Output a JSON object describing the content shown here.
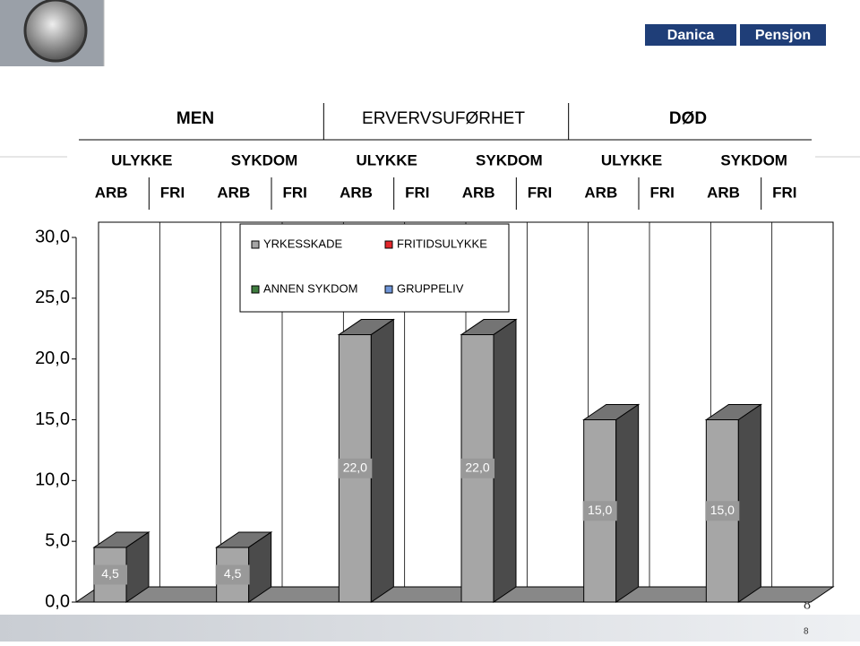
{
  "logo": {
    "left": "Danica",
    "right": "Pensjon"
  },
  "page_number": "8",
  "chart_data": {
    "type": "bar3d",
    "groups": [
      "MEN",
      "ERVERVSUFØRHET",
      "DØD"
    ],
    "subgroups": [
      "ULYKKE",
      "SYKDOM",
      "ULYKKE",
      "SYKDOM",
      "ULYKKE",
      "SYKDOM"
    ],
    "categories": [
      "ARB",
      "FRI",
      "ARB",
      "FRI",
      "ARB",
      "FRI",
      "ARB",
      "FRI",
      "ARB",
      "FRI",
      "ARB",
      "FRI"
    ],
    "series": [
      {
        "name": "YRKESSKADE",
        "color": "#a6a6a6",
        "values": [
          4.5,
          null,
          4.5,
          null,
          22,
          null,
          22,
          null,
          15,
          null,
          15,
          null
        ],
        "value_labels": [
          "4,5",
          null,
          "4,5",
          null,
          "22,0",
          null,
          "22,0",
          null,
          "15,0",
          null,
          "15,0",
          null
        ]
      },
      {
        "name": "FRITIDSULYKKE",
        "color": "#e3262b",
        "values": [
          null,
          null,
          null,
          null,
          null,
          null,
          null,
          null,
          null,
          null,
          null,
          null
        ]
      },
      {
        "name": "ANNEN SYKDOM",
        "color": "#3f7d3f",
        "values": [
          null,
          null,
          null,
          null,
          null,
          null,
          null,
          null,
          null,
          null,
          null,
          null
        ]
      },
      {
        "name": "GRUPPELIV",
        "color": "#6f96d8",
        "values": [
          null,
          null,
          null,
          null,
          null,
          null,
          null,
          null,
          null,
          null,
          null,
          null
        ]
      }
    ],
    "ylim": [
      0,
      30
    ],
    "yticks": [
      {
        "value": 0,
        "label": "0,0"
      },
      {
        "value": 5,
        "label": "5,0"
      },
      {
        "value": 10,
        "label": "10,0"
      },
      {
        "value": 15,
        "label": "15,0"
      },
      {
        "value": 20,
        "label": "20,0"
      },
      {
        "value": 25,
        "label": "25,0"
      },
      {
        "value": 30,
        "label": "30,0"
      }
    ],
    "grid": true
  }
}
